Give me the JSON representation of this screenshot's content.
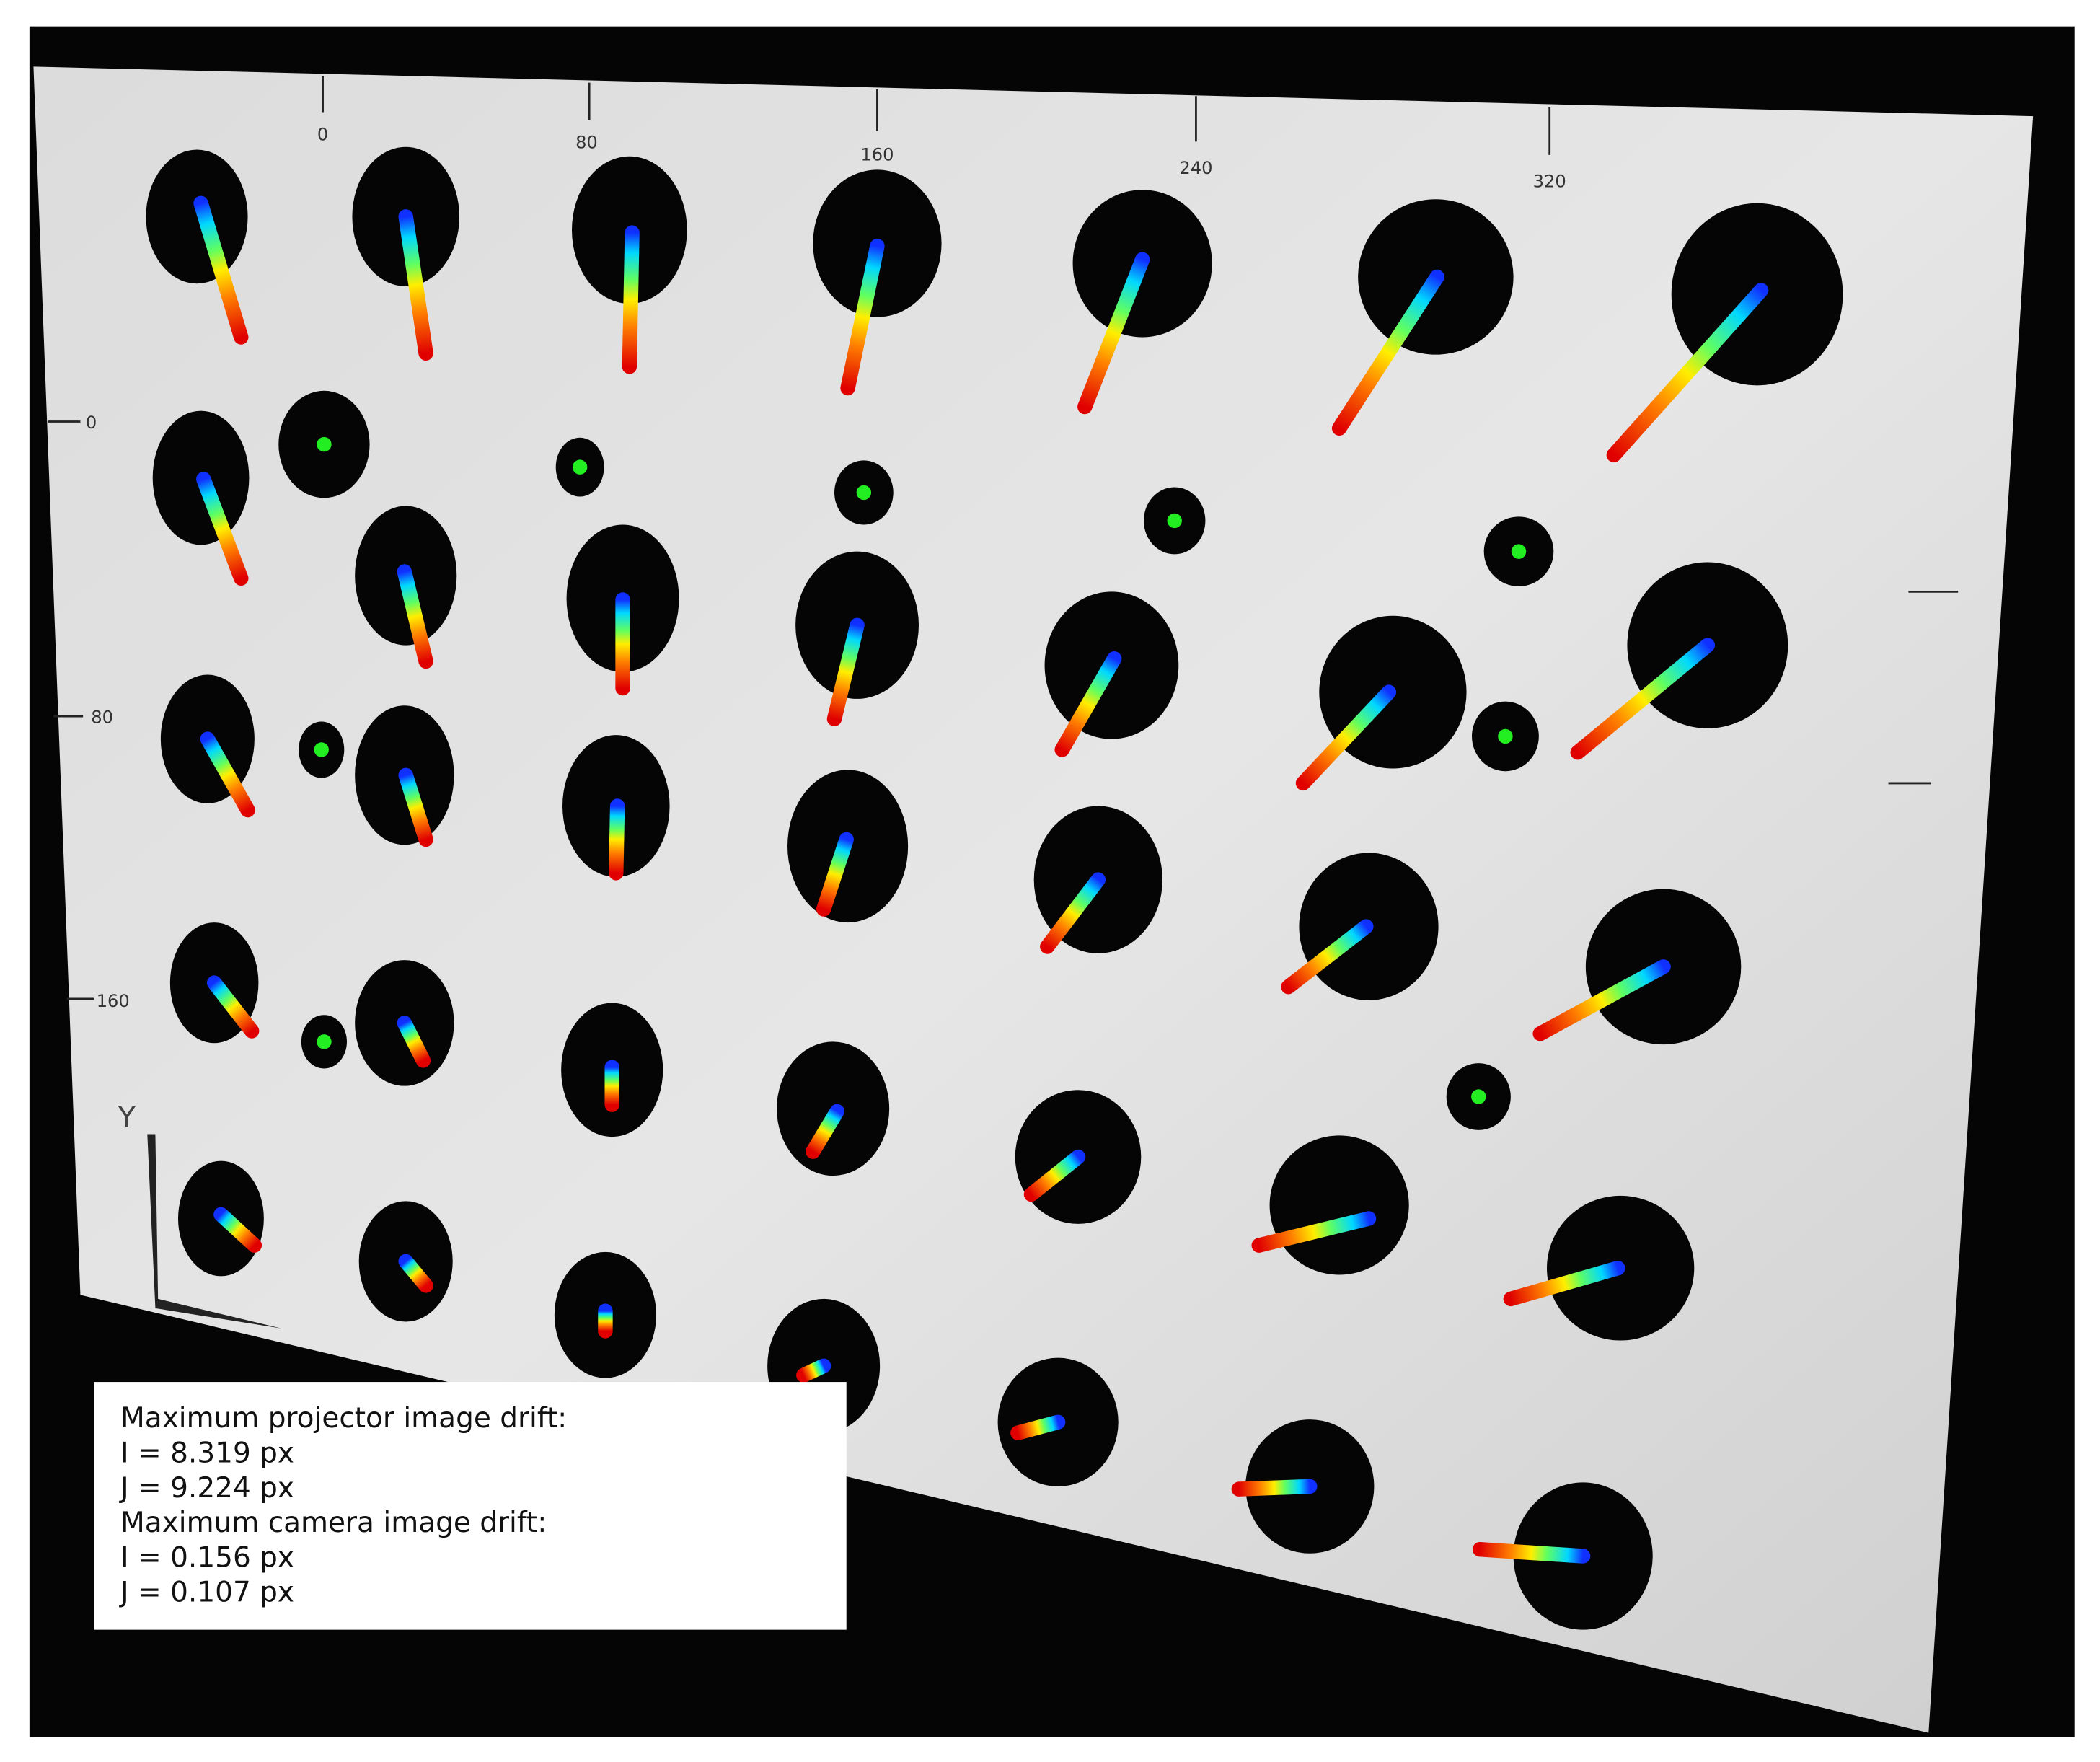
{
  "board_labels": {
    "top": [
      "0",
      "80",
      "160",
      "240",
      "320"
    ],
    "left": [
      "0",
      "80",
      "160"
    ],
    "axis": "Y"
  },
  "drift_box": {
    "lines": [
      "Maximum projector image drift:",
      "I = 8.319 px",
      "J = 9.224 px",
      "Maximum camera image drift:",
      "I = 0.156 px",
      "J = 0.107 px"
    ]
  }
}
